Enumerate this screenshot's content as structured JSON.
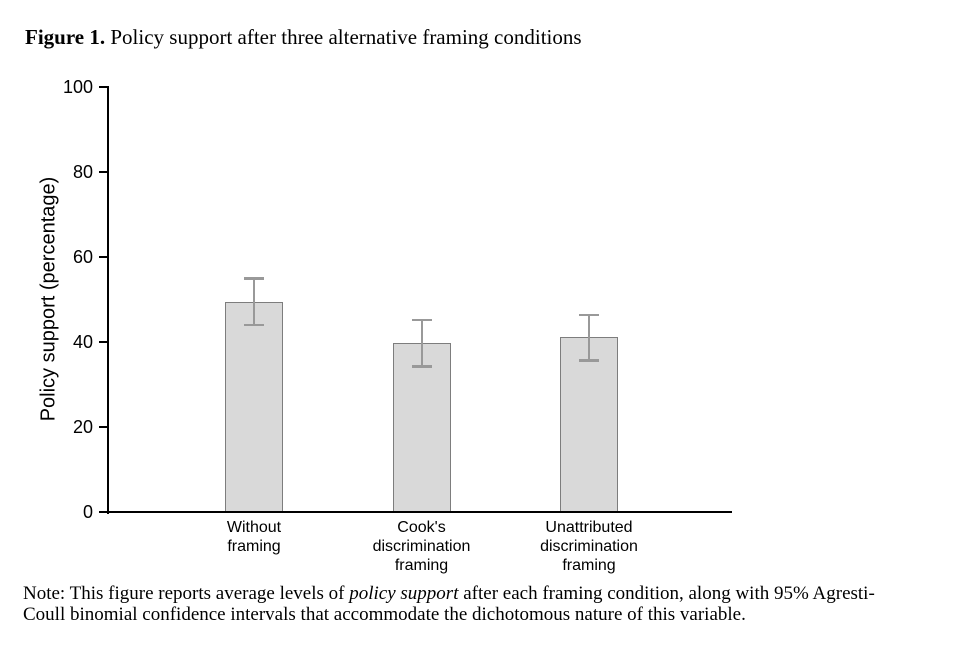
{
  "figure": {
    "title_label": "Figure 1.",
    "title_text": " Policy support after three alternative framing conditions",
    "note": {
      "line1_prefix": "Note: This figure reports average levels of ",
      "line1_italic": "policy support",
      "line1_suffix": " after each framing condition, along with 95% Agresti-",
      "line2": "Coull binomial confidence intervals that accommodate the dichotomous nature of this variable."
    }
  },
  "chart_data": {
    "type": "bar",
    "title": "",
    "xlabel": "",
    "ylabel": "Policy support (percentage)",
    "ylim": [
      0,
      100
    ],
    "yticks": [
      0,
      20,
      40,
      60,
      80,
      100
    ],
    "grid": false,
    "legend": false,
    "categories": [
      [
        "Without",
        "framing"
      ],
      [
        "Cook's",
        "discrimination",
        "framing"
      ],
      [
        "Unattributed",
        "discrimination",
        "framing"
      ]
    ],
    "values": [
      49.4,
      39.7,
      41.2
    ],
    "ci_low": [
      44.0,
      34.2,
      35.6
    ],
    "ci_high": [
      55.0,
      45.2,
      46.4
    ],
    "ci_type": "95% Agresti-Coull binomial confidence interval",
    "colors": {
      "bar_fill": "#d9d9d9",
      "bar_border": "#7d7d7d",
      "error": "#999999",
      "axis": "#000000",
      "text": "#000000"
    }
  }
}
